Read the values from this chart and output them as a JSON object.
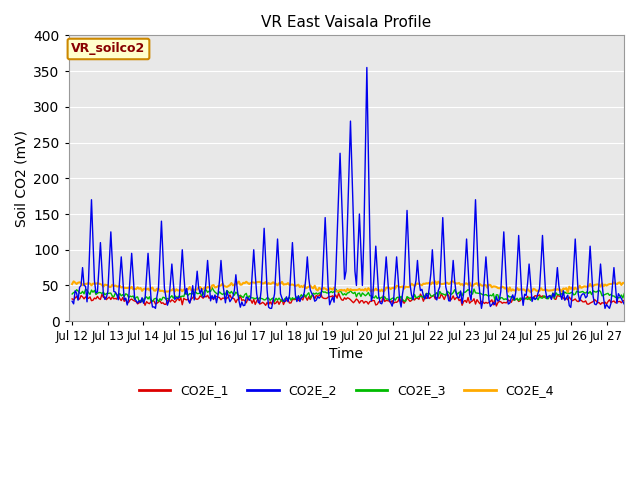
{
  "title": "VR East Vaisala Profile",
  "xlabel": "Time",
  "ylabel": "Soil CO2 (mV)",
  "ylim": [
    0,
    400
  ],
  "background_color": "#ffffff",
  "plot_bg_color": "#e8e8e8",
  "annotation_text": "VR_soilco2",
  "annotation_bg": "#ffffcc",
  "annotation_border": "#cc0000",
  "x_tick_labels": [
    "Jul 12",
    "Jul 13",
    "Jul 14",
    "Jul 15",
    "Jul 16",
    "Jul 17",
    "Jul 18",
    "Jul 19",
    "Jul 20",
    "Jul 21",
    "Jul 22",
    "Jul 23",
    "Jul 24",
    "Jul 25",
    "Jul 26",
    "Jul 27"
  ],
  "series": {
    "CO2E_1": {
      "color": "#dd0000",
      "linewidth": 1.0
    },
    "CO2E_2": {
      "color": "#0000ee",
      "linewidth": 1.0
    },
    "CO2E_3": {
      "color": "#00bb00",
      "linewidth": 1.0
    },
    "CO2E_4": {
      "color": "#ffaa00",
      "linewidth": 1.5
    }
  },
  "yticks": [
    0,
    50,
    100,
    150,
    200,
    250,
    300,
    350,
    400
  ],
  "title_fontsize": 11,
  "axis_label_fontsize": 10,
  "tick_fontsize": 8.5,
  "annotation_fontsize": 9,
  "legend_fontsize": 9
}
